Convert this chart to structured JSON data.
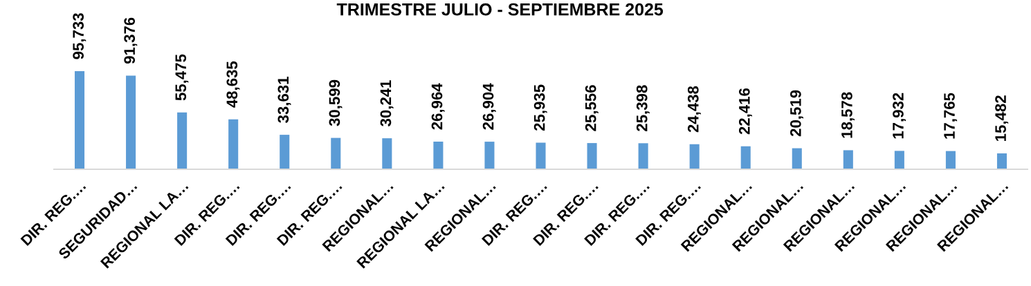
{
  "chart_data": {
    "type": "bar",
    "title": "TRIMESTRE JULIO - SEPTIEMBRE 2025",
    "categories": [
      "DIR. REG.…",
      "SEGURIDAD…",
      "REGIONAL LA…",
      "DIR. REG.…",
      "DIR. REG.…",
      "DIR. REG.…",
      "REGIONAL…",
      "REGIONAL LA…",
      "REGIONAL…",
      "DIR. REG.…",
      "DIR. REG.…",
      "DIR. REG.…",
      "DIR. REG.…",
      "REGIONAL…",
      "REGIONAL…",
      "REGIONAL…",
      "REGIONAL…",
      "REGIONAL…",
      "REGIONAL…"
    ],
    "values": [
      95733,
      91376,
      55475,
      48635,
      33631,
      30599,
      30241,
      26964,
      26904,
      25935,
      25556,
      25398,
      24438,
      22416,
      20519,
      18578,
      17932,
      17765,
      15482
    ],
    "value_labels": [
      "95,733",
      "91,376",
      "55,475",
      "48,635",
      "33,631",
      "30,599",
      "30,241",
      "26,964",
      "26,904",
      "25,935",
      "25,556",
      "25,398",
      "24,438",
      "22,416",
      "20,519",
      "18,578",
      "17,932",
      "17,765",
      "15,482"
    ],
    "color": "#5b9bd5",
    "tick_labels": "x"
  }
}
